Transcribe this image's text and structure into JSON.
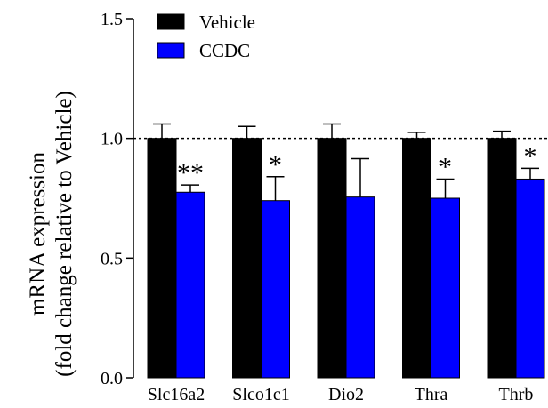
{
  "chart_data": {
    "type": "bar",
    "categories": [
      "Slc16a2",
      "Slco1c1",
      "Dio2",
      "Thra",
      "Thrb"
    ],
    "series": [
      {
        "name": "Vehicle",
        "color": "#000000",
        "values": [
          1.0,
          1.0,
          1.0,
          1.0,
          1.0
        ],
        "errors": [
          0.06,
          0.05,
          0.06,
          0.025,
          0.03
        ],
        "annotations": [
          "",
          "",
          "",
          "",
          ""
        ]
      },
      {
        "name": "CCDC",
        "color": "#0000ff",
        "values": [
          0.775,
          0.74,
          0.755,
          0.75,
          0.83
        ],
        "errors": [
          0.03,
          0.1,
          0.16,
          0.08,
          0.045
        ],
        "annotations": [
          "**",
          "*",
          "",
          "*",
          "*"
        ]
      }
    ],
    "ylabel_line1": "mRNA expression",
    "ylabel_line2": "(fold change relative to Vehicle)",
    "ylim": [
      0,
      1.5
    ],
    "yticks": [
      "0.0",
      "0.5",
      "1.0",
      "1.5"
    ],
    "reference_line": 1.0,
    "legend_position": "top-left"
  }
}
